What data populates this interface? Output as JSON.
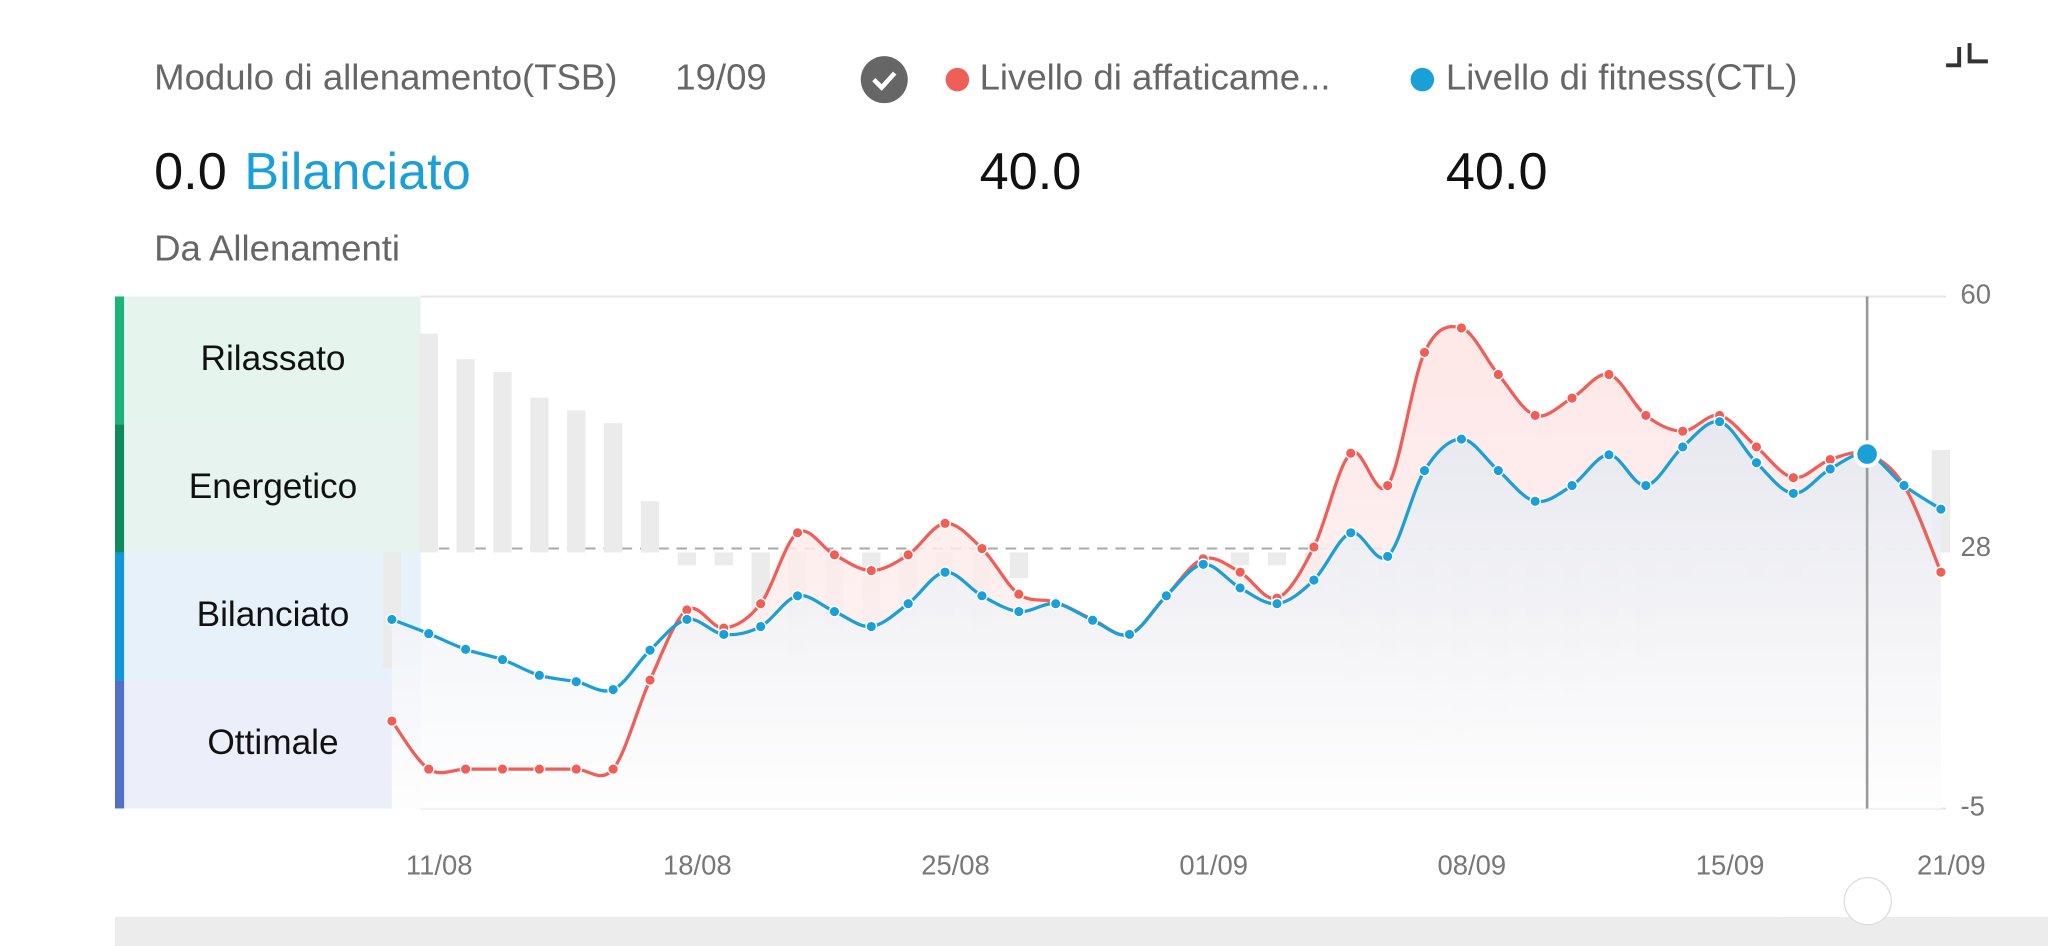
{
  "header": {
    "title": "Modulo di allenamento(TSB)",
    "date": "19/09",
    "tsb_value": "0.0",
    "tsb_status": "Bilanciato",
    "atl_value": "40.0",
    "ctl_value": "40.0",
    "source": "Da Allenamenti"
  },
  "chart_data": {
    "type": "line",
    "categories": [
      null,
      "11/08",
      null,
      null,
      null,
      null,
      null,
      null,
      "18/08",
      null,
      null,
      null,
      null,
      null,
      null,
      "25/08",
      null,
      null,
      null,
      null,
      null,
      null,
      "01/09",
      null,
      null,
      null,
      null,
      null,
      null,
      "08/09",
      null,
      null,
      null,
      null,
      null,
      null,
      "15/09",
      null,
      null,
      null,
      null,
      null,
      "21/09"
    ],
    "series": [
      {
        "name": "Livello di affaticame...",
        "color": "#ef5f58",
        "values": [
          6.1,
          0,
          0,
          0,
          0,
          0,
          0,
          11.3,
          20.2,
          17.9,
          21,
          30,
          27.2,
          25.2,
          27.2,
          31.2,
          28,
          22.2,
          21.2,
          19,
          17.1,
          22,
          26.7,
          25,
          21.7,
          28.2,
          40.1,
          36,
          52.9,
          56,
          50.1,
          44.9,
          47.1,
          50.1,
          44.9,
          42.9,
          44.9,
          40.9,
          37,
          39.3,
          40,
          36,
          25
        ]
      },
      {
        "name": "Livello di fitness(CTL)",
        "color": "#1a9fd9",
        "values": [
          19,
          17.2,
          15.2,
          13.9,
          11.9,
          11.1,
          10.1,
          15.1,
          19,
          17.1,
          18.1,
          22,
          20,
          18.1,
          21,
          25,
          22,
          20,
          21,
          18.9,
          17.1,
          22,
          26,
          23,
          21,
          24,
          30,
          27,
          37.9,
          41.9,
          37.9,
          34,
          36,
          39.9,
          36,
          40.9,
          44.1,
          38.9,
          35,
          38.1,
          40,
          36,
          33
        ]
      },
      {
        "type": "bar",
        "axis": "y2",
        "color": "#ebebeb",
        "values": [
          -9,
          17.1,
          15.1,
          14.1,
          12.1,
          11.1,
          10.1,
          4,
          -1,
          -1,
          -5,
          -8,
          -7,
          -6,
          -6,
          -5,
          -6,
          -2,
          0,
          0,
          0,
          0,
          0,
          -1,
          -1,
          -4,
          -10,
          -9,
          -15,
          -14,
          -13,
          -11,
          -11,
          -10,
          -9,
          -2,
          -1,
          -2,
          -2,
          -1,
          0,
          0,
          8
        ]
      }
    ],
    "ylim": [
      -5,
      60
    ],
    "yticks": [
      -5,
      28,
      60
    ],
    "y2lim": [
      -20,
      20
    ],
    "selected": 40,
    "zones": [
      {
        "label": "Rilassato",
        "color": "#1db37a",
        "fill": "#e5f5ed"
      },
      {
        "label": "Energetico",
        "color": "#0f8a5f",
        "fill": "#e6f3ef"
      },
      {
        "label": "Bilanciato",
        "color": "#1296db",
        "fill": "#e6f1fa"
      },
      {
        "label": "Ottimale",
        "color": "#5470c6",
        "fill": "#eceffa"
      }
    ]
  }
}
